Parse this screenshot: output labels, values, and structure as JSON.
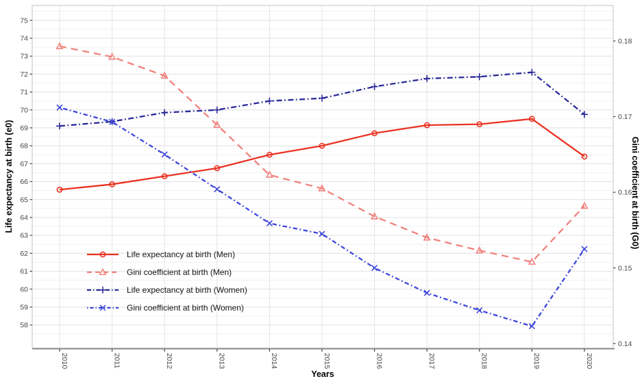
{
  "figure": {
    "xlabel": "Years",
    "ylabel_left": "Life expectancy at birth (e0)",
    "ylabel_right": "Gini coefficient at birth (G0)"
  },
  "chart_data": {
    "type": "line",
    "title": "",
    "xlabel": "Years",
    "x": [
      2010,
      2011,
      2012,
      2013,
      2014,
      2015,
      2016,
      2017,
      2018,
      2019,
      2020
    ],
    "left_axis": {
      "label": "Life expectancy at birth (e0)",
      "ticks": [
        58,
        59,
        60,
        61,
        62,
        63,
        64,
        65,
        66,
        67,
        68,
        69,
        70,
        71,
        72,
        73,
        74,
        75
      ],
      "minor_step": 0.5
    },
    "right_axis": {
      "label": "Gini coefficient at birth (G0)",
      "ticks": [
        0.14,
        0.15,
        0.16,
        0.17,
        0.18
      ]
    },
    "grid": true,
    "legend_position": "inside-bottom-left",
    "series": [
      {
        "name": "Life expectancy at birth (Men)",
        "key": "le-men",
        "axis": "left",
        "color": "#EB3223",
        "dash": "solid",
        "marker": "circle",
        "values": [
          65.55,
          65.85,
          66.3,
          66.75,
          67.5,
          68.0,
          68.7,
          69.15,
          69.2,
          69.5,
          67.4
        ]
      },
      {
        "name": "Gini coefficient at birth (Men)",
        "key": "gini-men",
        "axis": "right",
        "color": "#F0827D",
        "dash": "dashed",
        "marker": "triangle",
        "values": [
          0.1793,
          0.1779,
          0.1754,
          0.1689,
          0.1623,
          0.1605,
          0.1568,
          0.154,
          0.1523,
          0.1508,
          0.1582
        ]
      },
      {
        "name": "Life expectancy at birth (Women)",
        "key": "le-women",
        "axis": "left",
        "color": "#2A2A99",
        "dash": "dashdot",
        "marker": "plus",
        "values": [
          69.1,
          69.35,
          69.85,
          70.0,
          70.5,
          70.65,
          71.3,
          71.75,
          71.85,
          72.1,
          69.75
        ]
      },
      {
        "name": "Gini coefficient at birth (Women)",
        "key": "gini-women",
        "axis": "right",
        "color": "#3C46DC",
        "dash": "dotdash",
        "marker": "x",
        "values": [
          0.1712,
          0.1693,
          0.165,
          0.1604,
          0.1559,
          0.1545,
          0.15,
          0.1467,
          0.1444,
          0.1423,
          0.1525
        ]
      }
    ]
  }
}
